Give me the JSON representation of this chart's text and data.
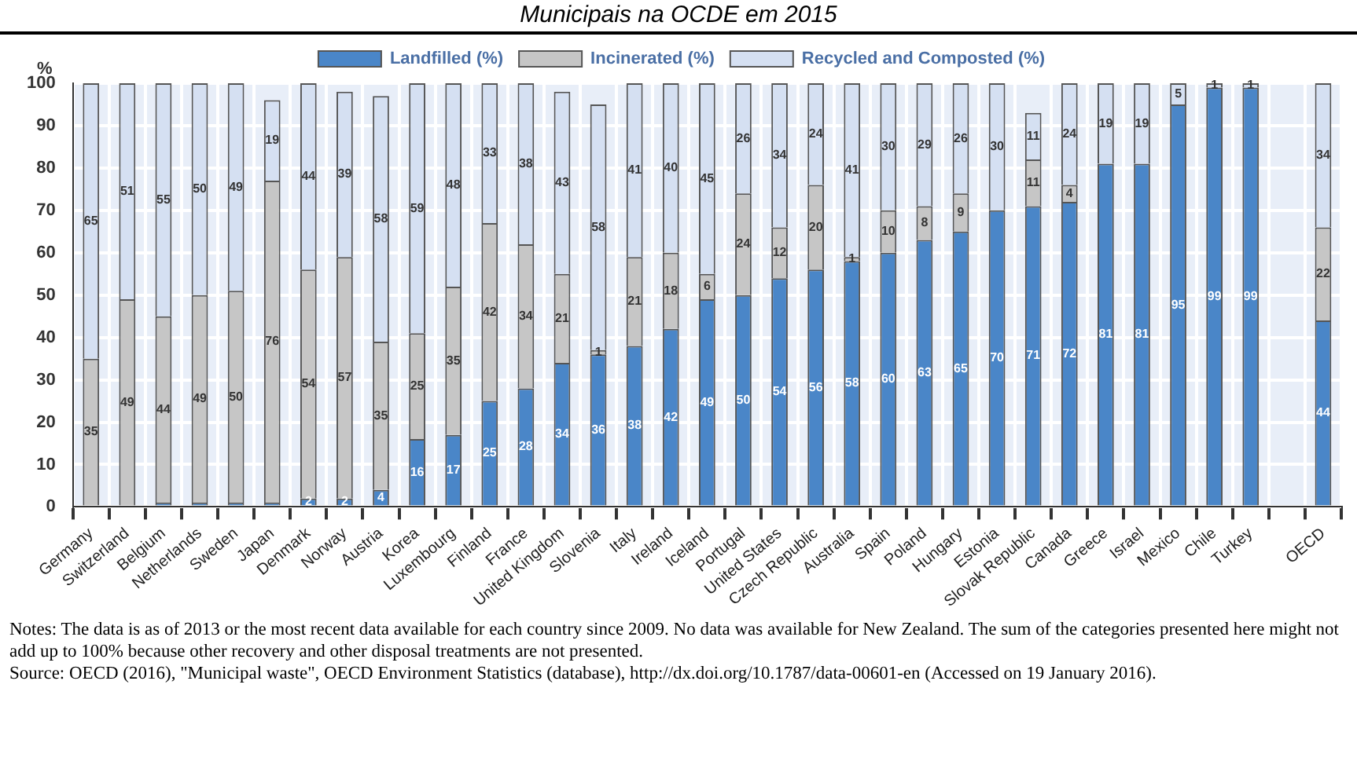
{
  "chart_data": {
    "type": "bar",
    "title": "Municipais na OCDE em 2015",
    "ylabel": "%",
    "stacked": true,
    "grid": true,
    "legend": "top",
    "categories": [
      "Germany",
      "Switzerland",
      "Belgium",
      "Netherlands",
      "Sweden",
      "Japan",
      "Denmark",
      "Norway",
      "Austria",
      "Korea",
      "Luxembourg",
      "Finland",
      "France",
      "United Kingdom",
      "Slovenia",
      "Italy",
      "Ireland",
      "Iceland",
      "Portugal",
      "United States",
      "Czech Republic",
      "Australia",
      "Spain",
      "Poland",
      "Hungary",
      "Estonia",
      "Slovak Republic",
      "Canada",
      "Greece",
      "Israel",
      "Mexico",
      "Chile",
      "Turkey",
      null,
      "OECD"
    ],
    "ylim": [
      0,
      100
    ],
    "yticks": [
      0,
      10,
      20,
      30,
      40,
      50,
      60,
      70,
      80,
      90,
      100
    ],
    "series": [
      {
        "name": "Landfilled (%)",
        "color": "#4a86c8",
        "values": [
          0,
          0,
          1,
          1,
          1,
          1,
          2,
          2,
          4,
          16,
          17,
          25,
          28,
          34,
          36,
          38,
          42,
          49,
          50,
          54,
          56,
          58,
          60,
          63,
          65,
          70,
          71,
          72,
          81,
          81,
          95,
          99,
          99,
          null,
          44
        ],
        "value_labels": [
          null,
          null,
          null,
          null,
          null,
          null,
          "2",
          "2",
          "4",
          "16",
          "17",
          "25",
          "28",
          "34",
          "36",
          "38",
          "42",
          "49",
          "50",
          "54",
          "56",
          "58",
          "60",
          "63",
          "65",
          "70",
          "71",
          "72",
          "81",
          "81",
          "95",
          "99",
          "99",
          null,
          "44"
        ]
      },
      {
        "name": "Incinerated (%)",
        "color": "#c6c6c6",
        "values": [
          35,
          49,
          44,
          49,
          50,
          76,
          54,
          57,
          35,
          25,
          35,
          42,
          34,
          21,
          1,
          21,
          18,
          6,
          24,
          12,
          20,
          1,
          10,
          8,
          9,
          0,
          11,
          4,
          0,
          0,
          0,
          0,
          0,
          null,
          22
        ],
        "value_labels": [
          "35",
          "49",
          "44",
          "49",
          "50",
          "76",
          "54",
          "57",
          "35",
          "25",
          "35",
          "42",
          "34",
          "21",
          "1",
          "21",
          "18",
          "6",
          "24",
          "12",
          "20",
          "1",
          "10",
          "8",
          "9",
          null,
          "11",
          "4",
          null,
          null,
          null,
          null,
          null,
          null,
          "22"
        ]
      },
      {
        "name": "Recycled and Composted (%)",
        "color": "#d5e0f2",
        "values": [
          65,
          51,
          55,
          50,
          49,
          19,
          44,
          39,
          58,
          59,
          48,
          33,
          38,
          43,
          58,
          41,
          40,
          45,
          26,
          34,
          24,
          41,
          30,
          29,
          26,
          30,
          11,
          24,
          19,
          19,
          5,
          1,
          1,
          null,
          34
        ],
        "value_labels": [
          "65",
          "51",
          "55",
          "50",
          "49",
          "19",
          "44",
          "39",
          "58",
          "59",
          "48",
          "33",
          "38",
          "43",
          "58",
          "41",
          "40",
          "45",
          "26",
          "34",
          "24",
          "41",
          "30",
          "29",
          "26",
          "30",
          "11",
          "24",
          "19",
          "19",
          "5",
          "1",
          "1",
          null,
          "34"
        ]
      }
    ],
    "annotations": [
      "Notes: The data is as of 2013 or the most recent data available for each country since 2009. No data was available for New Zealand. The sum of the categories presented here might not add up to 100% because other recovery and other disposal treatments are not presented.",
      "Source: OECD (2016), \"Municipal waste\", OECD Environment Statistics (database), http://dx.doi.org/10.1787/data-00601-en (Accessed on 19 January 2016)."
    ]
  }
}
